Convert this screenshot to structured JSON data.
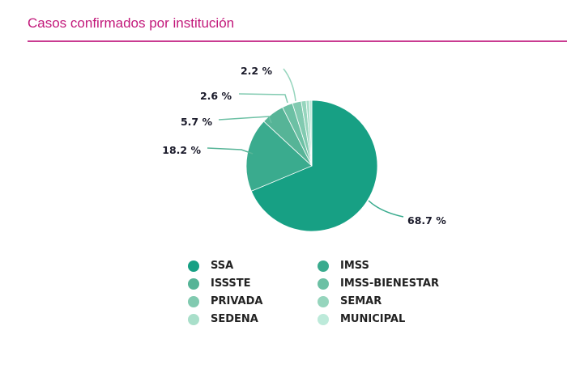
{
  "chart_data": {
    "type": "pie",
    "title": "Casos confirmados por institución",
    "categories": [
      "SSA",
      "IMSS",
      "ISSSTE",
      "IMSS-BIENESTAR",
      "PRIVADA",
      "SEMAR",
      "SEDENA",
      "MUNICIPAL"
    ],
    "values": [
      68.7,
      18.2,
      5.7,
      2.6,
      2.2,
      1.2,
      0.8,
      0.6
    ],
    "data_labels": [
      "68.7 %",
      "18.2 %",
      "5.7 %",
      "2.6 %",
      "2.2 %",
      null,
      null,
      null
    ],
    "colors": [
      "#17a084",
      "#3aab8e",
      "#56b497",
      "#6cc0a4",
      "#81cab0",
      "#96d5bd",
      "#a9dfca",
      "#bdeada"
    ],
    "legend_placement": "bottom"
  }
}
